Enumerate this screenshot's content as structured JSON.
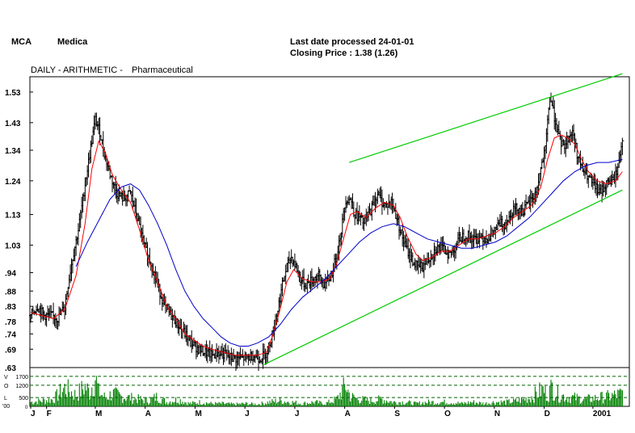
{
  "header": {
    "ticker": "MCA",
    "company": "Medica",
    "last_date_label": "Last date processed 24-01-01",
    "closing_label": "Closing Price : 1.38  (1.26)",
    "chart_mode": "DAILY - ARITHMETIC -",
    "sector": "Pharmaceutical"
  },
  "chart_data": {
    "type": "line",
    "subtype": "ohlc-with-moving-averages-and-volume",
    "title": "",
    "xlabel": "",
    "ylabel": "",
    "price_axis": {
      "scale": "arithmetic",
      "ticks": [
        1.53,
        1.43,
        1.34,
        1.24,
        1.13,
        1.03,
        0.94,
        0.88,
        0.83,
        0.78,
        0.74,
        0.69,
        0.63
      ],
      "tick_labels": [
        "1.53",
        "1.43",
        "1.34",
        "1.24",
        "1.13",
        "1.03",
        ".94",
        ".88",
        ".83",
        ".78",
        ".74",
        ".69",
        ".63"
      ],
      "range": [
        0.63,
        1.58
      ]
    },
    "volume_axis": {
      "ticks": [
        1700,
        1200,
        500
      ],
      "tick_labels": [
        "1700",
        "1200",
        "500"
      ],
      "side_letters": [
        "V",
        "O",
        "L"
      ],
      "unit_label": "'00",
      "zero_label": "0",
      "range": [
        0,
        2200
      ]
    },
    "x_axis": {
      "labels": [
        "J",
        "F",
        "M",
        "A",
        "M",
        "J",
        "J",
        "A",
        "S",
        "O",
        "N",
        "D",
        "2001"
      ],
      "positions": [
        0,
        14,
        57,
        101,
        145,
        189,
        233,
        277,
        321,
        365,
        409,
        453,
        496
      ]
    },
    "x_range": [
      0,
      526
    ],
    "close_key_points": [
      [
        0,
        0.8
      ],
      [
        6,
        0.83
      ],
      [
        12,
        0.8
      ],
      [
        18,
        0.8
      ],
      [
        24,
        0.79
      ],
      [
        30,
        0.83
      ],
      [
        36,
        0.97
      ],
      [
        42,
        1.08
      ],
      [
        48,
        1.23
      ],
      [
        53,
        1.35
      ],
      [
        57,
        1.44
      ],
      [
        61,
        1.4
      ],
      [
        65,
        1.33
      ],
      [
        70,
        1.26
      ],
      [
        76,
        1.2
      ],
      [
        82,
        1.18
      ],
      [
        88,
        1.2
      ],
      [
        94,
        1.12
      ],
      [
        100,
        1.03
      ],
      [
        106,
        0.97
      ],
      [
        112,
        0.9
      ],
      [
        118,
        0.83
      ],
      [
        124,
        0.8
      ],
      [
        130,
        0.77
      ],
      [
        136,
        0.74
      ],
      [
        142,
        0.71
      ],
      [
        148,
        0.69
      ],
      [
        154,
        0.68
      ],
      [
        160,
        0.67
      ],
      [
        166,
        0.68
      ],
      [
        172,
        0.67
      ],
      [
        178,
        0.66
      ],
      [
        184,
        0.66
      ],
      [
        190,
        0.66
      ],
      [
        196,
        0.67
      ],
      [
        202,
        0.66
      ],
      [
        206,
        0.67
      ],
      [
        210,
        0.7
      ],
      [
        214,
        0.75
      ],
      [
        218,
        0.82
      ],
      [
        222,
        0.9
      ],
      [
        226,
        0.96
      ],
      [
        230,
        0.99
      ],
      [
        234,
        0.96
      ],
      [
        238,
        0.92
      ],
      [
        242,
        0.9
      ],
      [
        246,
        0.91
      ],
      [
        250,
        0.92
      ],
      [
        254,
        0.93
      ],
      [
        258,
        0.9
      ],
      [
        262,
        0.91
      ],
      [
        266,
        0.94
      ],
      [
        270,
        1.0
      ],
      [
        274,
        1.08
      ],
      [
        278,
        1.18
      ],
      [
        282,
        1.18
      ],
      [
        286,
        1.13
      ],
      [
        290,
        1.12
      ],
      [
        294,
        1.1
      ],
      [
        298,
        1.13
      ],
      [
        302,
        1.16
      ],
      [
        306,
        1.2
      ],
      [
        310,
        1.17
      ],
      [
        314,
        1.16
      ],
      [
        318,
        1.17
      ],
      [
        322,
        1.13
      ],
      [
        326,
        1.08
      ],
      [
        330,
        1.03
      ],
      [
        334,
        1.0
      ],
      [
        338,
        0.97
      ],
      [
        342,
        0.96
      ],
      [
        346,
        0.96
      ],
      [
        350,
        0.98
      ],
      [
        354,
        1.0
      ],
      [
        358,
        1.02
      ],
      [
        362,
        1.02
      ],
      [
        366,
        1.01
      ],
      [
        370,
        1.0
      ],
      [
        374,
        1.02
      ],
      [
        378,
        1.05
      ],
      [
        382,
        1.06
      ],
      [
        386,
        1.06
      ],
      [
        390,
        1.05
      ],
      [
        394,
        1.05
      ],
      [
        398,
        1.06
      ],
      [
        402,
        1.05
      ],
      [
        406,
        1.06
      ],
      [
        410,
        1.08
      ],
      [
        414,
        1.1
      ],
      [
        418,
        1.1
      ],
      [
        422,
        1.12
      ],
      [
        426,
        1.15
      ],
      [
        430,
        1.15
      ],
      [
        434,
        1.14
      ],
      [
        438,
        1.16
      ],
      [
        442,
        1.18
      ],
      [
        446,
        1.2
      ],
      [
        450,
        1.28
      ],
      [
        454,
        1.34
      ],
      [
        458,
        1.52
      ],
      [
        462,
        1.45
      ],
      [
        466,
        1.38
      ],
      [
        470,
        1.35
      ],
      [
        474,
        1.38
      ],
      [
        478,
        1.4
      ],
      [
        482,
        1.33
      ],
      [
        486,
        1.28
      ],
      [
        490,
        1.26
      ],
      [
        494,
        1.24
      ],
      [
        498,
        1.22
      ],
      [
        502,
        1.2
      ],
      [
        506,
        1.22
      ],
      [
        510,
        1.24
      ],
      [
        514,
        1.24
      ],
      [
        518,
        1.28
      ],
      [
        522,
        1.38
      ]
    ],
    "moving_averages": [
      {
        "label": "short moving average",
        "color": "#ff0000",
        "points": [
          [
            0,
            0.81
          ],
          [
            10,
            0.8
          ],
          [
            20,
            0.79
          ],
          [
            30,
            0.82
          ],
          [
            40,
            0.93
          ],
          [
            48,
            1.1
          ],
          [
            54,
            1.28
          ],
          [
            60,
            1.37
          ],
          [
            66,
            1.33
          ],
          [
            72,
            1.26
          ],
          [
            80,
            1.21
          ],
          [
            88,
            1.17
          ],
          [
            96,
            1.08
          ],
          [
            104,
            0.98
          ],
          [
            112,
            0.91
          ],
          [
            120,
            0.83
          ],
          [
            128,
            0.79
          ],
          [
            136,
            0.74
          ],
          [
            144,
            0.72
          ],
          [
            152,
            0.7
          ],
          [
            160,
            0.69
          ],
          [
            170,
            0.68
          ],
          [
            180,
            0.67
          ],
          [
            190,
            0.67
          ],
          [
            200,
            0.67
          ],
          [
            208,
            0.68
          ],
          [
            214,
            0.74
          ],
          [
            220,
            0.82
          ],
          [
            226,
            0.91
          ],
          [
            232,
            0.95
          ],
          [
            240,
            0.92
          ],
          [
            248,
            0.91
          ],
          [
            256,
            0.91
          ],
          [
            264,
            0.92
          ],
          [
            270,
            0.97
          ],
          [
            276,
            1.05
          ],
          [
            282,
            1.13
          ],
          [
            288,
            1.14
          ],
          [
            296,
            1.12
          ],
          [
            304,
            1.15
          ],
          [
            312,
            1.17
          ],
          [
            320,
            1.16
          ],
          [
            326,
            1.12
          ],
          [
            332,
            1.06
          ],
          [
            340,
            1.0
          ],
          [
            346,
            0.98
          ],
          [
            354,
            0.99
          ],
          [
            362,
            1.01
          ],
          [
            370,
            1.01
          ],
          [
            378,
            1.03
          ],
          [
            386,
            1.05
          ],
          [
            394,
            1.05
          ],
          [
            402,
            1.06
          ],
          [
            410,
            1.07
          ],
          [
            418,
            1.09
          ],
          [
            426,
            1.12
          ],
          [
            434,
            1.14
          ],
          [
            442,
            1.16
          ],
          [
            450,
            1.22
          ],
          [
            456,
            1.31
          ],
          [
            462,
            1.38
          ],
          [
            468,
            1.39
          ],
          [
            474,
            1.38
          ],
          [
            480,
            1.36
          ],
          [
            486,
            1.31
          ],
          [
            492,
            1.27
          ],
          [
            500,
            1.24
          ],
          [
            508,
            1.23
          ],
          [
            516,
            1.24
          ],
          [
            522,
            1.27
          ]
        ]
      },
      {
        "label": "long moving average",
        "color": "#0000cc",
        "points": [
          [
            40,
            0.96
          ],
          [
            50,
            1.04
          ],
          [
            60,
            1.11
          ],
          [
            70,
            1.18
          ],
          [
            80,
            1.22
          ],
          [
            88,
            1.23
          ],
          [
            96,
            1.21
          ],
          [
            104,
            1.16
          ],
          [
            112,
            1.1
          ],
          [
            120,
            1.03
          ],
          [
            128,
            0.95
          ],
          [
            136,
            0.88
          ],
          [
            144,
            0.83
          ],
          [
            152,
            0.79
          ],
          [
            160,
            0.76
          ],
          [
            168,
            0.73
          ],
          [
            176,
            0.71
          ],
          [
            184,
            0.7
          ],
          [
            192,
            0.7
          ],
          [
            200,
            0.71
          ],
          [
            210,
            0.73
          ],
          [
            220,
            0.77
          ],
          [
            230,
            0.82
          ],
          [
            240,
            0.86
          ],
          [
            250,
            0.89
          ],
          [
            260,
            0.92
          ],
          [
            270,
            0.96
          ],
          [
            280,
            1.0
          ],
          [
            290,
            1.04
          ],
          [
            300,
            1.07
          ],
          [
            310,
            1.09
          ],
          [
            320,
            1.1
          ],
          [
            330,
            1.09
          ],
          [
            340,
            1.07
          ],
          [
            350,
            1.05
          ],
          [
            360,
            1.04
          ],
          [
            370,
            1.03
          ],
          [
            380,
            1.02
          ],
          [
            390,
            1.02
          ],
          [
            400,
            1.03
          ],
          [
            410,
            1.04
          ],
          [
            420,
            1.06
          ],
          [
            430,
            1.09
          ],
          [
            440,
            1.12
          ],
          [
            450,
            1.16
          ],
          [
            460,
            1.2
          ],
          [
            470,
            1.24
          ],
          [
            480,
            1.27
          ],
          [
            490,
            1.29
          ],
          [
            500,
            1.3
          ],
          [
            510,
            1.3
          ],
          [
            522,
            1.31
          ]
        ]
      }
    ],
    "trend_channel": {
      "color": "#00cc00",
      "upper": [
        [
          281,
          1.3
        ],
        [
          522,
          1.59
        ]
      ],
      "lower": [
        [
          206,
          0.64
        ],
        [
          522,
          1.21
        ]
      ]
    },
    "volume_key_points": [
      [
        0,
        300
      ],
      [
        10,
        400
      ],
      [
        20,
        500
      ],
      [
        30,
        1300
      ],
      [
        40,
        800
      ],
      [
        48,
        1400
      ],
      [
        52,
        1000
      ],
      [
        57,
        2100
      ],
      [
        60,
        1000
      ],
      [
        66,
        600
      ],
      [
        72,
        900
      ],
      [
        80,
        700
      ],
      [
        88,
        600
      ],
      [
        96,
        500
      ],
      [
        104,
        400
      ],
      [
        112,
        700
      ],
      [
        120,
        300
      ],
      [
        130,
        500
      ],
      [
        140,
        200
      ],
      [
        150,
        300
      ],
      [
        160,
        200
      ],
      [
        170,
        200
      ],
      [
        180,
        150
      ],
      [
        190,
        200
      ],
      [
        200,
        150
      ],
      [
        210,
        300
      ],
      [
        220,
        400
      ],
      [
        230,
        300
      ],
      [
        240,
        200
      ],
      [
        250,
        300
      ],
      [
        260,
        200
      ],
      [
        270,
        500
      ],
      [
        278,
        1500
      ],
      [
        282,
        700
      ],
      [
        290,
        500
      ],
      [
        300,
        400
      ],
      [
        310,
        500
      ],
      [
        320,
        300
      ],
      [
        330,
        300
      ],
      [
        340,
        200
      ],
      [
        350,
        300
      ],
      [
        360,
        300
      ],
      [
        370,
        300
      ],
      [
        380,
        200
      ],
      [
        390,
        300
      ],
      [
        400,
        200
      ],
      [
        410,
        300
      ],
      [
        420,
        300
      ],
      [
        430,
        400
      ],
      [
        440,
        600
      ],
      [
        448,
        1000
      ],
      [
        452,
        1200
      ],
      [
        456,
        800
      ],
      [
        460,
        1400
      ],
      [
        466,
        800
      ],
      [
        472,
        700
      ],
      [
        480,
        600
      ],
      [
        490,
        500
      ],
      [
        500,
        600
      ],
      [
        510,
        700
      ],
      [
        522,
        900
      ]
    ],
    "volume_color": "#008000",
    "ohlc_color": "#000000",
    "grid": false,
    "legend": "none"
  }
}
